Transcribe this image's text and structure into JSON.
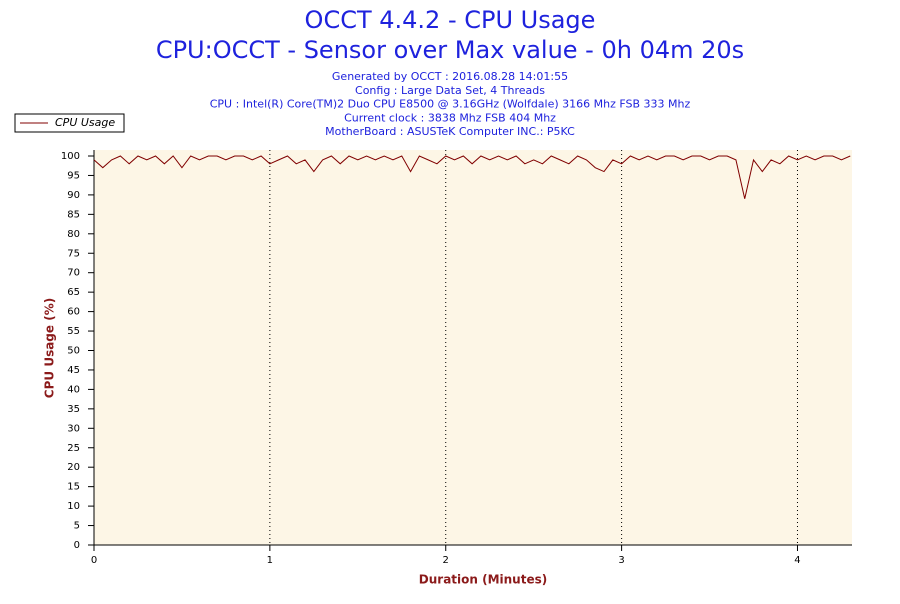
{
  "chart_data": {
    "type": "line",
    "title": "OCCT 4.4.2 - CPU Usage",
    "subtitle": "CPU:OCCT - Sensor over Max value - 0h 04m 20s",
    "info": [
      "Generated by OCCT : 2016.08.28 14:01:55",
      "Config : Large Data Set, 4 Threads",
      "CPU : Intel(R) Core(TM)2 Duo CPU E8500 @ 3.16GHz (Wolfdale) 3166 Mhz FSB 333 Mhz",
      "Current clock : 3838 Mhz FSB 404 Mhz",
      "MotherBoard : ASUSTeK Computer INC.: P5KC"
    ],
    "xlabel": "Duration (Minutes)",
    "ylabel": "CPU Usage (%)",
    "x": [
      0,
      0.05,
      0.1,
      0.15,
      0.2,
      0.25,
      0.3,
      0.35,
      0.4,
      0.45,
      0.5,
      0.55,
      0.6,
      0.65,
      0.7,
      0.75,
      0.8,
      0.85,
      0.9,
      0.95,
      1,
      1.05,
      1.1,
      1.15,
      1.2,
      1.25,
      1.3,
      1.35,
      1.4,
      1.45,
      1.5,
      1.55,
      1.6,
      1.65,
      1.7,
      1.75,
      1.8,
      1.85,
      1.9,
      1.95,
      2,
      2.05,
      2.1,
      2.15,
      2.2,
      2.25,
      2.3,
      2.35,
      2.4,
      2.45,
      2.5,
      2.55,
      2.6,
      2.65,
      2.7,
      2.75,
      2.8,
      2.85,
      2.9,
      2.95,
      3,
      3.05,
      3.1,
      3.15,
      3.2,
      3.25,
      3.3,
      3.35,
      3.4,
      3.45,
      3.5,
      3.55,
      3.6,
      3.65,
      3.7,
      3.75,
      3.8,
      3.85,
      3.9,
      3.95,
      4,
      4.05,
      4.1,
      4.15,
      4.2,
      4.25,
      4.3
    ],
    "series": [
      {
        "name": "CPU Usage",
        "color": "#800000",
        "values": [
          99,
          97,
          99,
          100,
          98,
          100,
          99,
          100,
          98,
          100,
          97,
          100,
          99,
          100,
          100,
          99,
          100,
          100,
          99,
          100,
          98,
          99,
          100,
          98,
          99,
          96,
          99,
          100,
          98,
          100,
          99,
          100,
          99,
          100,
          99,
          100,
          96,
          100,
          99,
          98,
          100,
          99,
          100,
          98,
          100,
          99,
          100,
          99,
          100,
          98,
          99,
          98,
          100,
          99,
          98,
          100,
          99,
          97,
          96,
          99,
          98,
          100,
          99,
          100,
          99,
          100,
          100,
          99,
          100,
          100,
          99,
          100,
          100,
          99,
          89,
          99,
          96,
          99,
          98,
          100,
          99,
          100,
          99,
          100,
          100,
          99,
          100
        ]
      }
    ],
    "xlim": [
      0,
      4.31
    ],
    "ylim": [
      0,
      100
    ],
    "xticks": [
      0,
      1,
      2,
      3,
      4
    ],
    "yticks": [
      0,
      5,
      10,
      15,
      20,
      25,
      30,
      35,
      40,
      45,
      50,
      55,
      60,
      65,
      70,
      75,
      80,
      85,
      90,
      95,
      100
    ],
    "grid": true,
    "legend": "top-left"
  }
}
